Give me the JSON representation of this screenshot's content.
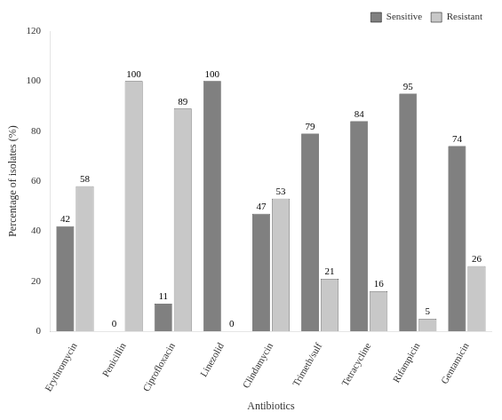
{
  "chart_data": {
    "type": "bar",
    "xlabel": "Antibiotics",
    "ylabel": "Percentage of isolates (%)",
    "categories": [
      "Erythromycin",
      "Penicillin",
      "Ciprofloxacin",
      "Linezolid",
      "Clindamycin",
      "Trimeth/sulf",
      "Tetracycline",
      "Rifampicin",
      "Gentamicin"
    ],
    "series": [
      {
        "name": "Sensitive",
        "color": "#808080",
        "values": [
          42,
          0,
          11,
          100,
          47,
          79,
          84,
          95,
          74
        ]
      },
      {
        "name": "Resistant",
        "color": "#c8c8c8",
        "values": [
          58,
          100,
          89,
          0,
          53,
          21,
          16,
          5,
          26
        ]
      }
    ],
    "ylim": [
      0,
      120
    ],
    "yticks": [
      0,
      20,
      40,
      60,
      80,
      100,
      120
    ],
    "grid": false,
    "legend": "upper right",
    "data_labels": true
  }
}
